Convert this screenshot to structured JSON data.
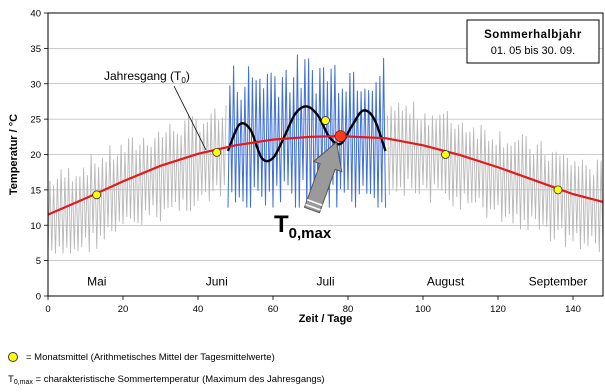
{
  "chart_data": {
    "type": "line",
    "xlabel": "Zeit / Tage",
    "ylabel": "Temperatur / °C",
    "xlim": [
      0,
      148
    ],
    "ylim": [
      0,
      40
    ],
    "x_ticks": [
      0,
      20,
      40,
      60,
      80,
      100,
      120,
      140
    ],
    "y_ticks": [
      0,
      5,
      10,
      15,
      20,
      25,
      30,
      35,
      40
    ],
    "grid": "horizontal",
    "box": {
      "title": "Sommerhalbjahr",
      "range": "01. 05  bis 30. 09."
    },
    "months": [
      {
        "label": "Mai",
        "x": 13
      },
      {
        "label": "Juni",
        "x": 45
      },
      {
        "label": "Juli",
        "x": 74
      },
      {
        "label": "August",
        "x": 106
      },
      {
        "label": "September",
        "x": 136
      }
    ],
    "monthly_means": [
      {
        "x": 13,
        "y": 14.3
      },
      {
        "x": 45,
        "y": 20.3
      },
      {
        "x": 74,
        "y": 24.8
      },
      {
        "x": 106,
        "y": 20.0
      },
      {
        "x": 136,
        "y": 15.0
      }
    ],
    "annual_curve": {
      "name_main": "Jahresgang (T",
      "name_sub": "0",
      "name_end": ")",
      "x": [
        0,
        10,
        20,
        30,
        40,
        50,
        60,
        70,
        78,
        90,
        100,
        110,
        120,
        130,
        140,
        148
      ],
      "y": [
        11.5,
        13.8,
        16.2,
        18.4,
        20.1,
        21.3,
        22.1,
        22.5,
        22.6,
        22.3,
        21.3,
        19.9,
        18.2,
        16.3,
        14.4,
        13.3
      ]
    },
    "smooth_curve": {
      "x": [
        48,
        51,
        54,
        57,
        60,
        63,
        66,
        69,
        72,
        75,
        78,
        81,
        84,
        87,
        90
      ],
      "y": [
        20.5,
        24.2,
        23.5,
        19.5,
        19.5,
        22.5,
        25.8,
        26.8,
        25.5,
        22.5,
        21.5,
        24.0,
        26.2,
        25.0,
        20.5
      ]
    },
    "max_point": {
      "x": 78,
      "y": 22.6
    },
    "max_label": {
      "main": "T",
      "sub": "0,max"
    },
    "gray_series": "daily mean temperature, 1 May – 30 Sep",
    "blue_series": "daily temperature, highlighted interval"
  },
  "legend": {
    "monthly_mean": "= Monatsmittel (Arithmetisches Mittel der Tagesmittelwerte)",
    "tmax_symbol": "T",
    "tmax_sub": "0,max",
    "tmax_text": "= charakteristische Sommertemperatur (Maximum des Jahresgangs)"
  },
  "colors": {
    "annual": "#e31a1c",
    "gray": "#b8b8b8",
    "blue": "#3f6fd9",
    "smooth": "#000000",
    "dot": "#ffff00",
    "max": "#ff3b1f"
  }
}
